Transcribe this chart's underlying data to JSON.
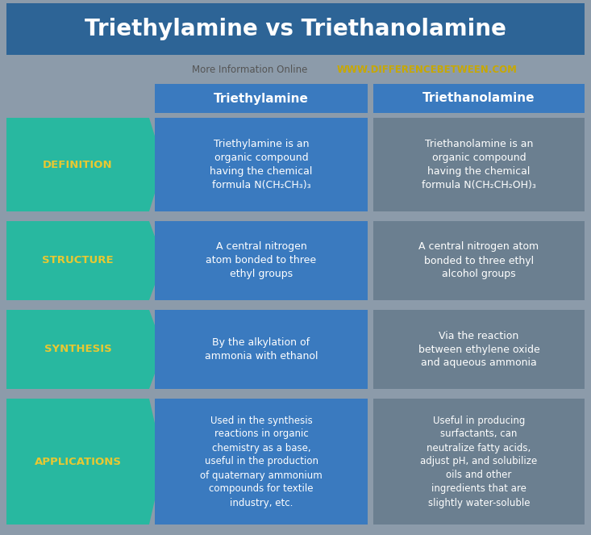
{
  "title": "Triethylamine vs Triethanolamine",
  "subtitle_plain": "More Information Online",
  "subtitle_url": "WWW.DIFFERENCEBETWEEN.COM",
  "bg_color": "#8c9baa",
  "title_bg_color": "#2d6496",
  "title_text_color": "#ffffff",
  "header_bg_color": "#3a7abf",
  "header_text_color": "#ffffff",
  "col1_bg_color": "#3a7abf",
  "col2_bg_color": "#6b7f90",
  "cell_text_color": "#ffffff",
  "arrow_color": "#28b8a0",
  "arrow_text_color": "#e8c832",
  "subtitle_plain_color": "#555555",
  "subtitle_url_color": "#c8a800",
  "rows": [
    {
      "label": "DEFINITION",
      "col1": "Triethylamine is an\norganic compound\nhaving the chemical\nformula N(CH₂CH₃)₃",
      "col2": "Triethanolamine is an\norganic compound\nhaving the chemical\nformula N(CH₂CH₂OH)₃"
    },
    {
      "label": "STRUCTURE",
      "col1": "A central nitrogen\natom bonded to three\nethyl groups",
      "col2": "A central nitrogen atom\nbonded to three ethyl\nalcohol groups"
    },
    {
      "label": "SYNTHESIS",
      "col1": "By the alkylation of\nammonia with ethanol",
      "col2": "Via the reaction\nbetween ethylene oxide\nand aqueous ammonia"
    },
    {
      "label": "APPLICATIONS",
      "col1": "Used in the synthesis\nreactions in organic\nchemistry as a base,\nuseful in the production\nof quaternary ammonium\ncompounds for textile\nindustry, etc.",
      "col2": "Useful in producing\nsurfactants, can\nneutralize fatty acids,\nadjust pH, and solubilize\noils and other\ningredients that are\nslightly water-soluble"
    }
  ],
  "col_headers": [
    "Triethylamine",
    "Triethanolamine"
  ]
}
